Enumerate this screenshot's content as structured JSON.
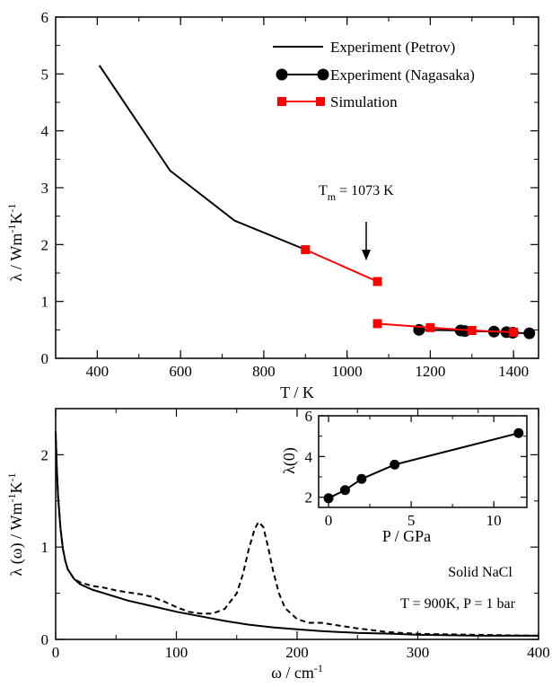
{
  "chart_data": [
    {
      "type": "line",
      "xlabel": "T / K",
      "ylabel": "λ / Wm-1K-1",
      "ylabel_parts": [
        "λ / Wm",
        "-1",
        "K",
        "-1"
      ],
      "xlim": [
        300,
        1460
      ],
      "ylim": [
        0,
        6
      ],
      "xticks": [
        "400",
        "600",
        "800",
        "1000",
        "1200",
        "1400"
      ],
      "yticks": [
        "0",
        "1",
        "2",
        "3",
        "4",
        "5",
        "6"
      ],
      "legend_position": "top-right",
      "series": [
        {
          "name": "Experiment (Petrov)",
          "color": "#000000",
          "marker": "none",
          "x": [
            405,
            575,
            730,
            900
          ],
          "y": [
            5.15,
            3.3,
            2.42,
            1.91
          ]
        },
        {
          "name": "Experiment (Nagasaka)",
          "color": "#000000",
          "marker": "circle",
          "x": [
            1173,
            1273,
            1283,
            1353,
            1383,
            1398,
            1438
          ],
          "y": [
            0.5,
            0.49,
            0.48,
            0.47,
            0.46,
            0.45,
            0.44
          ]
        },
        {
          "name": "Simulation",
          "color": "#ff0000",
          "marker": "square",
          "segments": [
            {
              "x": [
                900,
                1073
              ],
              "y": [
                1.91,
                1.35
              ]
            },
            {
              "x": [
                1073,
                1200,
                1300,
                1400
              ],
              "y": [
                0.61,
                0.54,
                0.49,
                0.46
              ]
            }
          ]
        }
      ],
      "annotation": {
        "text": "Tm = 1073 K",
        "base": "T",
        "sub": "m",
        "rest": " = 1073 K",
        "arrow_x": 1073
      }
    },
    {
      "type": "line",
      "xlabel": "ω / cm-1",
      "xlabel_parts": [
        "ω / cm",
        "-1"
      ],
      "ylabel": "λ (ω) / Wm-1K-1",
      "ylabel_parts": [
        "λ (ω) / Wm",
        "-1",
        "K",
        "-1"
      ],
      "xlim": [
        0,
        400
      ],
      "ylim": [
        0,
        2.5
      ],
      "xticks": [
        "0",
        "100",
        "200",
        "300",
        "400"
      ],
      "yticks": [
        "0",
        "1",
        "2"
      ],
      "annotations": [
        "Solid NaCl",
        "T = 900K, P = 1 bar"
      ],
      "series": [
        {
          "style": "solid",
          "color": "#000000",
          "x": [
            0,
            1,
            2,
            4,
            6,
            8,
            10,
            15,
            20,
            30,
            40,
            50,
            60,
            80,
            100,
            120,
            140,
            160,
            180,
            200,
            220,
            250,
            280,
            300,
            350,
            400
          ],
          "y": [
            2.25,
            1.85,
            1.55,
            1.2,
            0.98,
            0.85,
            0.76,
            0.66,
            0.6,
            0.54,
            0.5,
            0.46,
            0.42,
            0.36,
            0.3,
            0.25,
            0.2,
            0.16,
            0.13,
            0.11,
            0.09,
            0.07,
            0.06,
            0.05,
            0.04,
            0.04
          ]
        },
        {
          "style": "dashed",
          "color": "#000000",
          "x": [
            0,
            1,
            2,
            4,
            6,
            8,
            10,
            15,
            20,
            30,
            40,
            50,
            60,
            70,
            80,
            90,
            100,
            110,
            120,
            130,
            140,
            150,
            155,
            160,
            165,
            168,
            172,
            176,
            180,
            185,
            190,
            200,
            210,
            220,
            230,
            250,
            275,
            300,
            350,
            400
          ],
          "y": [
            2.25,
            1.85,
            1.55,
            1.2,
            0.98,
            0.85,
            0.76,
            0.66,
            0.62,
            0.58,
            0.56,
            0.53,
            0.51,
            0.49,
            0.46,
            0.41,
            0.35,
            0.3,
            0.28,
            0.28,
            0.33,
            0.5,
            0.7,
            0.98,
            1.2,
            1.27,
            1.22,
            1.0,
            0.75,
            0.5,
            0.34,
            0.22,
            0.18,
            0.18,
            0.16,
            0.12,
            0.08,
            0.06,
            0.05,
            0.04
          ]
        }
      ]
    },
    {
      "type": "scatter",
      "xlabel": "P / GPa",
      "ylabel": "λ(0)",
      "xlim": [
        -0.6,
        12
      ],
      "ylim": [
        1.5,
        6
      ],
      "xticks": [
        "0",
        "5",
        "10"
      ],
      "yticks": [
        "2",
        "4",
        "6"
      ],
      "series": [
        {
          "color": "#000000",
          "marker": "circle",
          "x": [
            0,
            1,
            2,
            4,
            11.5
          ],
          "y": [
            1.95,
            2.35,
            2.9,
            3.6,
            5.15
          ]
        }
      ]
    }
  ]
}
